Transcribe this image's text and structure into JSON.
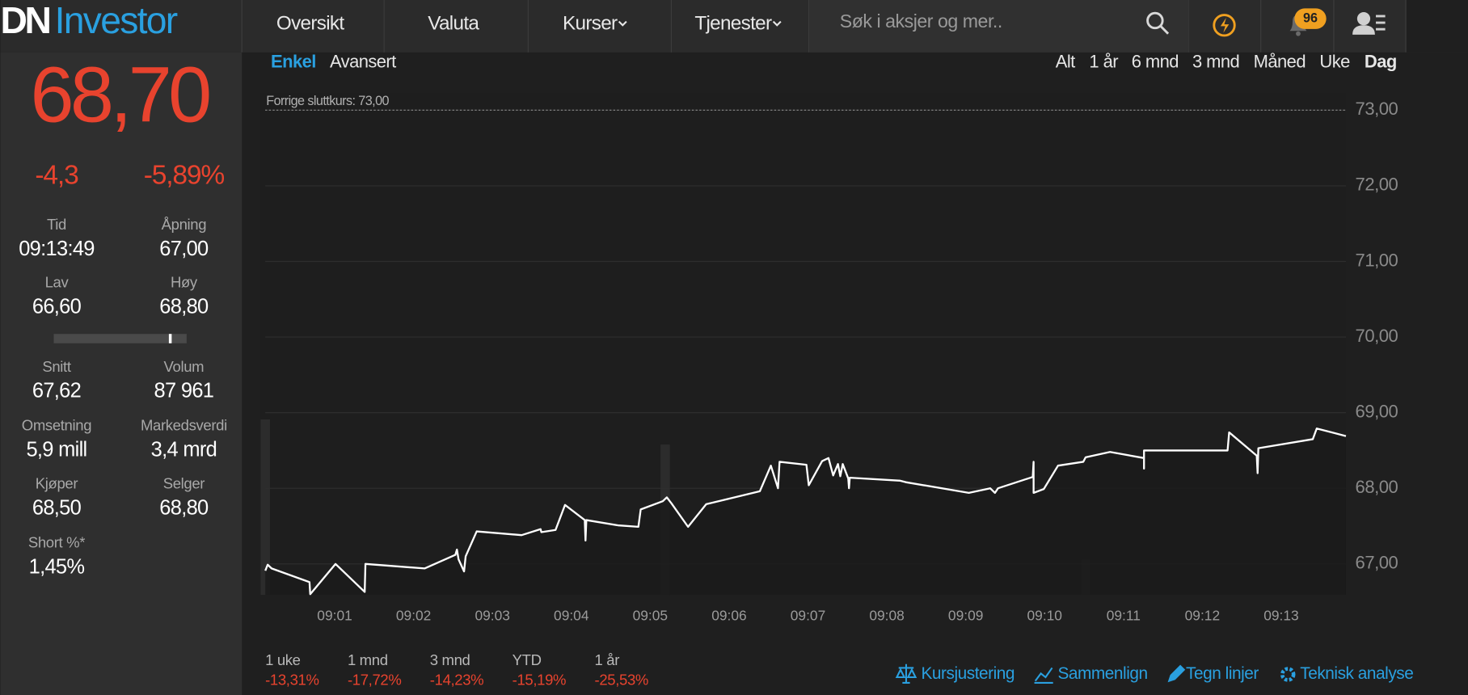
{
  "header": {
    "logo_dn": "DN",
    "logo_investor": "Investor",
    "nav": [
      "Oversikt",
      "Valuta",
      "Kurser",
      "Tjenester"
    ],
    "search_placeholder": "Søk i aksjer og mer..",
    "notification_count": "96"
  },
  "quote": {
    "price": "68,70",
    "change": "-4,3",
    "change_pct": "-5,89%",
    "stats": [
      {
        "label": "Tid",
        "value": "09:13:49"
      },
      {
        "label": "Åpning",
        "value": "67,00"
      },
      {
        "label": "Lav",
        "value": "66,60"
      },
      {
        "label": "Høy",
        "value": "68,80"
      },
      {
        "label": "Snitt",
        "value": "67,62"
      },
      {
        "label": "Volum",
        "value": "87 961"
      },
      {
        "label": "Omsetning",
        "value": "5,9 mill"
      },
      {
        "label": "Markedsverdi",
        "value": "3,4 mrd"
      },
      {
        "label": "Kjøper",
        "value": "68,50"
      },
      {
        "label": "Selger",
        "value": "68,80"
      },
      {
        "label": "Short %*",
        "value": "1,45%"
      }
    ]
  },
  "chart_modes": [
    "Enkel",
    "Avansert"
  ],
  "periods": [
    "Alt",
    "1 år",
    "6 mnd",
    "3 mnd",
    "Måned",
    "Uke",
    "Dag"
  ],
  "chart_data": {
    "type": "line",
    "annotation": "Forrige sluttkurs: 73,00",
    "prev_close": 73,
    "x": [
      0.12,
      0.15,
      0.2,
      0.68,
      0.69,
      1.01,
      1.38,
      1.39,
      2.14,
      2.53,
      2.55,
      2.57,
      2.64,
      2.66,
      2.8,
      3.37,
      3.61,
      3.62,
      3.8,
      3.92,
      4.17,
      4.18,
      4.19,
      4.59,
      4.85,
      4.88,
      5.16,
      5.21,
      5.27,
      5.48,
      5.71,
      6.39,
      6.53,
      6.62,
      6.64,
      6.98,
      7.01,
      7.18,
      7.26,
      7.32,
      7.38,
      7.41,
      7.44,
      7.51,
      7.52,
      7.53,
      8.17,
      8.24,
      9.04,
      9.31,
      9.37,
      9.41,
      9.85,
      9.86,
      9.86,
      9.99,
      10.17,
      10.49,
      10.52,
      10.83,
      11.26,
      11.26,
      11.26,
      12.32,
      12.34,
      12.69,
      12.7,
      12.71,
      13.4,
      13.45,
      13.82
    ],
    "series": [
      {
        "color": "#ffffff",
        "values": [
          66.91,
          66.99,
          66.94,
          66.76,
          66.6,
          67.0,
          66.63,
          67.0,
          66.94,
          67.12,
          67.19,
          67.06,
          66.9,
          67.1,
          67.43,
          67.38,
          67.46,
          67.42,
          67.45,
          67.78,
          67.58,
          67.31,
          67.58,
          67.51,
          67.49,
          67.72,
          67.83,
          67.88,
          67.8,
          67.49,
          67.79,
          67.96,
          68.3,
          68.0,
          68.35,
          68.31,
          68.04,
          68.36,
          68.4,
          68.17,
          68.32,
          68.16,
          68.32,
          68.13,
          68.0,
          68.14,
          68.1,
          68.08,
          67.94,
          68.0,
          67.94,
          68.0,
          68.15,
          68.35,
          67.94,
          67.99,
          68.3,
          68.35,
          68.41,
          68.48,
          68.4,
          68.26,
          68.5,
          68.5,
          68.74,
          68.43,
          68.2,
          68.53,
          68.65,
          68.79,
          68.69
        ]
      }
    ],
    "bars": {
      "x": [
        0.12,
        5.19,
        10.52
      ],
      "values": [
        35,
        30,
        7
      ],
      "color": "#2c2c2c"
    },
    "y2lim": [
      0,
      100
    ],
    "xlim": [
      0.06,
      13.82
    ],
    "ylim": [
      66.59,
      73.22
    ],
    "xticks": [
      {
        "value": 1,
        "label": "09:01"
      },
      {
        "value": 2,
        "label": "09:02"
      },
      {
        "value": 3,
        "label": "09:03"
      },
      {
        "value": 4,
        "label": "09:04"
      },
      {
        "value": 5,
        "label": "09:05"
      },
      {
        "value": 6,
        "label": "09:06"
      },
      {
        "value": 7,
        "label": "09:07"
      },
      {
        "value": 8,
        "label": "09:08"
      },
      {
        "value": 9,
        "label": "09:09"
      },
      {
        "value": 10,
        "label": "09:10"
      },
      {
        "value": 11,
        "label": "09:11"
      },
      {
        "value": 12,
        "label": "09:12"
      },
      {
        "value": 13,
        "label": "09:13"
      }
    ],
    "yticks": [
      {
        "value": 67,
        "label": "67,00"
      },
      {
        "value": 68,
        "label": "68,00"
      },
      {
        "value": 69,
        "label": "69,00"
      },
      {
        "value": 70,
        "label": "70,00"
      },
      {
        "value": 71,
        "label": "71,00"
      },
      {
        "value": 72,
        "label": "72,00"
      },
      {
        "value": 73,
        "label": "73,00"
      }
    ],
    "grid": true
  },
  "returns": [
    {
      "label": "1 uke",
      "value": "-13,31%"
    },
    {
      "label": "1 mnd",
      "value": "-17,72%"
    },
    {
      "label": "3 mnd",
      "value": "-14,23%"
    },
    {
      "label": "YTD",
      "value": "-15,19%"
    },
    {
      "label": "1 år",
      "value": "-25,53%"
    }
  ],
  "tools": [
    "Kursjustering",
    "Sammenlign",
    "Tegn linjer",
    "Teknisk analyse"
  ]
}
